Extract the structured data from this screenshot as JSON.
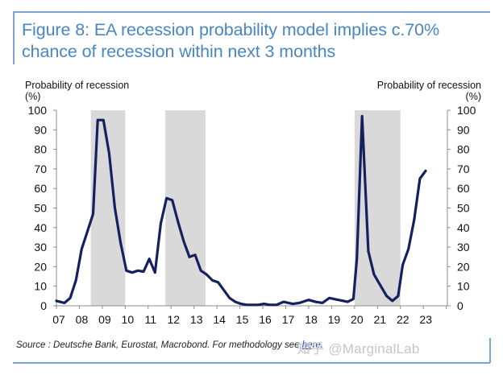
{
  "figure": {
    "title": "Figure 8: EA recession probability model implies c.70% chance of recession within next 3 months",
    "source_prefix": "Source : Deutsche Bank, Eurostat, Macrobond. For methodology see ",
    "source_link": "here",
    "source_suffix": ".",
    "watermark": "知乎 @MarginalLab"
  },
  "chart_data": {
    "type": "line",
    "title": "Figure 8: EA recession probability model implies c.70% chance of recession within next 3 months",
    "ylabel_left": "Probability of recession (%)",
    "ylabel_right": "Probability of recession (%)",
    "ylabel_left_line1": "Probability of recession",
    "ylabel_left_line2": "(%)",
    "ylabel_right_line1": "Probability of recession",
    "ylabel_right_line2": "(%)",
    "xlabel": "",
    "ylim": [
      0,
      100
    ],
    "xlim": [
      2007,
      2024
    ],
    "yticks": [
      0,
      10,
      20,
      30,
      40,
      50,
      60,
      70,
      80,
      90,
      100
    ],
    "xtick_labels": [
      "07",
      "08",
      "09",
      "10",
      "11",
      "12",
      "13",
      "14",
      "15",
      "16",
      "17",
      "18",
      "19",
      "20",
      "21",
      "22",
      "23"
    ],
    "xtick_years": [
      2007,
      2008,
      2009,
      2010,
      2011,
      2012,
      2013,
      2014,
      2015,
      2016,
      2017,
      2018,
      2019,
      2020,
      2021,
      2022,
      2023
    ],
    "grid": false,
    "line_color": "#16205e",
    "shade_color": "#d9d9d9",
    "recession_periods": [
      {
        "start": 2008.5,
        "end": 2010.0
      },
      {
        "start": 2011.75,
        "end": 2013.5
      },
      {
        "start": 2020.0,
        "end": 2022.0
      }
    ],
    "series": [
      {
        "name": "EA recession probability",
        "x": [
          2007.0,
          2007.35,
          2007.6,
          2007.85,
          2008.1,
          2008.35,
          2008.6,
          2008.8,
          2009.05,
          2009.3,
          2009.55,
          2009.8,
          2010.05,
          2010.3,
          2010.55,
          2010.8,
          2011.05,
          2011.3,
          2011.55,
          2011.8,
          2012.05,
          2012.3,
          2012.55,
          2012.8,
          2013.05,
          2013.3,
          2013.55,
          2013.8,
          2014.05,
          2014.3,
          2014.55,
          2014.8,
          2015.05,
          2015.3,
          2015.8,
          2016.05,
          2016.3,
          2016.6,
          2016.9,
          2017.3,
          2017.6,
          2018.0,
          2018.3,
          2018.6,
          2018.9,
          2019.3,
          2019.7,
          2019.95,
          2020.1,
          2020.33,
          2020.6,
          2020.85,
          2021.1,
          2021.4,
          2021.65,
          2021.9,
          2022.1,
          2022.35,
          2022.6,
          2022.85,
          2023.1
        ],
        "values": [
          2.5,
          1.5,
          4,
          13,
          29,
          38,
          47,
          95,
          95,
          78,
          50,
          32,
          18,
          17,
          18,
          17.5,
          24,
          17,
          42,
          55,
          54,
          43,
          33,
          25,
          26,
          18,
          16,
          13,
          12,
          8,
          4,
          2,
          1,
          0.5,
          0.5,
          1,
          0.5,
          0.5,
          2,
          1,
          1.5,
          3,
          2,
          1.5,
          4,
          3,
          2,
          3.5,
          24,
          97,
          28,
          16,
          11,
          5,
          2.5,
          5,
          21,
          29,
          44,
          65,
          69
        ]
      }
    ]
  }
}
